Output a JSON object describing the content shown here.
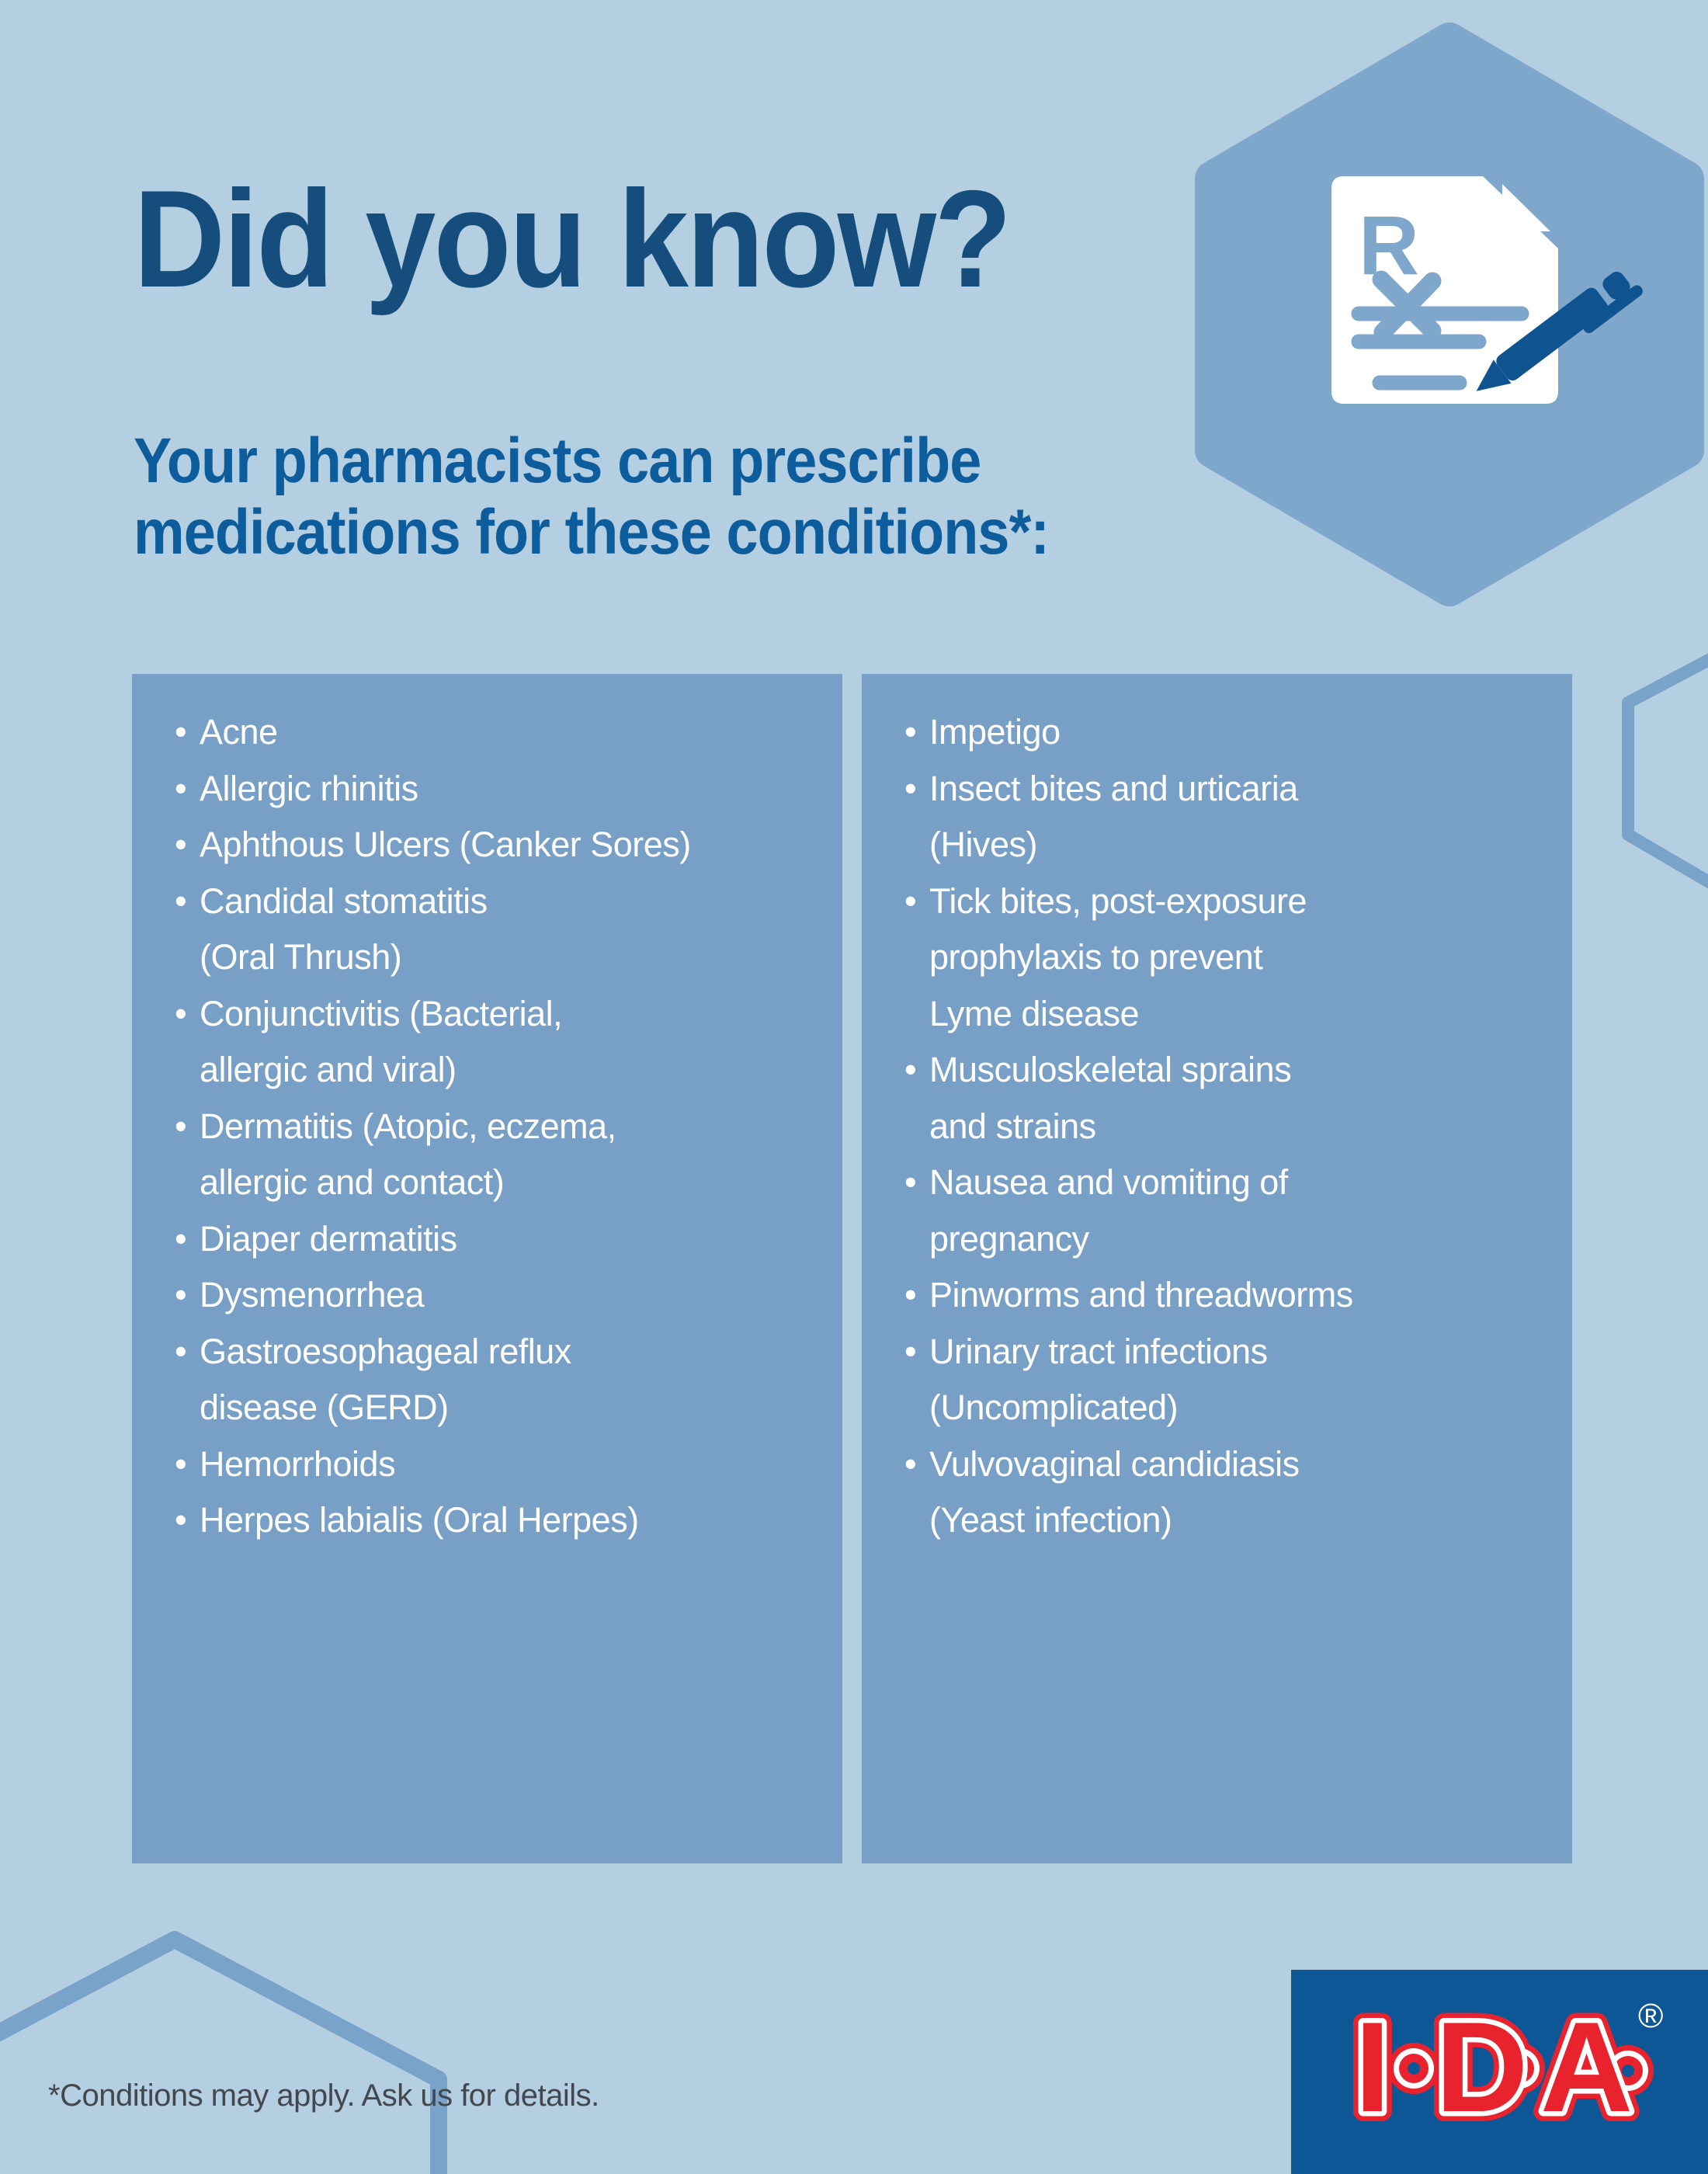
{
  "header": {
    "title": "Did you know?",
    "subtitle_lines": [
      "Your pharmacists can prescribe",
      "medications for these conditions*:"
    ]
  },
  "badge": {
    "rx_letter": "R",
    "icon": "prescription-document-with-pen-icon"
  },
  "columns": {
    "left": {
      "items": [
        {
          "lines": [
            "Acne"
          ]
        },
        {
          "lines": [
            "Allergic rhinitis"
          ]
        },
        {
          "lines": [
            "Aphthous Ulcers (Canker Sores)"
          ]
        },
        {
          "lines": [
            "Candidal stomatitis",
            "(Oral Thrush)"
          ]
        },
        {
          "lines": [
            "Conjunctivitis (Bacterial,",
            "allergic and viral)"
          ]
        },
        {
          "lines": [
            "Dermatitis (Atopic, eczema,",
            "allergic and contact)"
          ]
        },
        {
          "lines": [
            "Diaper dermatitis"
          ]
        },
        {
          "lines": [
            "Dysmenorrhea"
          ]
        },
        {
          "lines": [
            "Gastroesophageal reflux",
            "disease (GERD)"
          ]
        },
        {
          "lines": [
            "Hemorrhoids"
          ]
        },
        {
          "lines": [
            "Herpes labialis (Oral Herpes)"
          ]
        }
      ]
    },
    "right": {
      "items": [
        {
          "lines": [
            "Impetigo"
          ]
        },
        {
          "lines": [
            "Insect bites and urticaria",
            "(Hives)"
          ]
        },
        {
          "lines": [
            "Tick bites, post-exposure",
            "prophylaxis to prevent",
            "Lyme disease"
          ]
        },
        {
          "lines": [
            "Musculoskeletal sprains",
            "and strains"
          ]
        },
        {
          "lines": [
            "Nausea and vomiting of",
            "pregnancy"
          ]
        },
        {
          "lines": [
            "Pinworms and threadworms"
          ]
        },
        {
          "lines": [
            "Urinary tract infections",
            "(Uncomplicated)"
          ]
        },
        {
          "lines": [
            "Vulvovaginal candidiasis",
            "(Yeast infection)"
          ]
        }
      ]
    }
  },
  "footer": {
    "note": "*Conditions may apply. Ask us for details."
  },
  "brand": {
    "letters": [
      "I",
      "D",
      "A"
    ],
    "registered": "®"
  },
  "icons": {
    "badge": "hexagon-badge",
    "decorations": [
      "hexagon-outline-right",
      "hexagon-outline-bottom-left"
    ],
    "logo": "ida-logo"
  },
  "colors": {
    "background": "#b4cee2",
    "title": "#154d7c",
    "subtitle": "#0d5c9c",
    "box": "#789fc5",
    "hexagon_fill": "#7fa6cb",
    "hexagon_outline": "#7aa3c9",
    "pen": "#0f5490",
    "list_text": "#ffffff",
    "footnote_text": "#44484e",
    "logo_box": "#0e5796",
    "logo_red": "#e9232e"
  }
}
